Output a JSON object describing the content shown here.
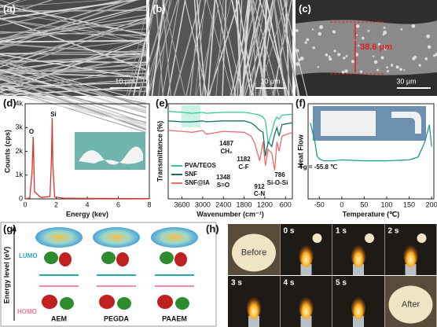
{
  "panels": {
    "labels": [
      "(a)",
      "(b)",
      "(c)",
      "(d)",
      "(e)",
      "(f)",
      "(g)",
      "(h)"
    ],
    "scale_bars": [
      "10 μm",
      "10 μm",
      "30 μm"
    ],
    "thickness": "38.6 μm",
    "g": {
      "y_label": "Energy level (eV)",
      "lumo": "LUMO",
      "homo": "HOMO",
      "molecules": [
        "AEM",
        "PEGDA",
        "PAAEM"
      ]
    },
    "h": {
      "frames": [
        "Before",
        "0 s",
        "1 s",
        "2 s",
        "3 s",
        "4 s",
        "5 s",
        "After"
      ]
    }
  },
  "chart_data": [
    {
      "type": "line",
      "xlabel": "Energy (kev)",
      "ylabel": "Counts (cps)",
      "x": [
        0,
        0.3,
        0.45,
        0.52,
        0.6,
        1.0,
        1.6,
        1.7,
        1.74,
        1.78,
        1.9,
        2.5,
        4,
        6,
        8
      ],
      "xlim": [
        0,
        8
      ],
      "xticks": [
        0,
        2,
        4,
        6,
        8
      ],
      "ylim": [
        0,
        4000
      ],
      "yticks": [
        0,
        {
          "value": 1000,
          "label": "1k"
        },
        {
          "value": 2000,
          "label": "2k"
        },
        {
          "value": 3000,
          "label": "3k"
        },
        {
          "value": 4000,
          "label": "4k"
        }
      ],
      "series": [
        {
          "color": "#e0302a",
          "values": [
            0,
            40,
            1200,
            2600,
            300,
            60,
            100,
            1800,
            3400,
            1500,
            80,
            30,
            20,
            15,
            10
          ]
        }
      ],
      "annotations": [
        "O",
        "Si"
      ]
    },
    {
      "type": "line",
      "xlabel": "Wavenumber (cm⁻¹)",
      "ylabel": "Transmittance (%)",
      "x": [
        4000,
        3600,
        3300,
        3000,
        2900,
        2400,
        1800,
        1600,
        1487,
        1348,
        1250,
        1182,
        1100,
        1000,
        912,
        850,
        786,
        700,
        400
      ],
      "xlim": [
        4000,
        400
      ],
      "xticks": [
        3600,
        3000,
        2400,
        1800,
        1200,
        600
      ],
      "ylim": [
        0,
        100
      ],
      "legend": "lower left",
      "series": [
        {
          "name": "PVA/TEOS",
          "color": "#35c99a",
          "values": [
            92,
            91,
            90,
            91,
            90,
            91,
            91,
            90,
            89,
            88,
            86,
            82,
            58,
            70,
            82,
            86,
            84,
            88,
            89
          ]
        },
        {
          "name": "SNF",
          "color": "#1d6f63",
          "values": [
            82,
            81,
            81,
            82,
            81,
            82,
            82,
            80,
            77,
            72,
            70,
            45,
            60,
            55,
            68,
            75,
            66,
            78,
            80
          ]
        },
        {
          "name": "SNF@IA",
          "color": "#ec6b6b",
          "values": [
            72,
            71,
            70,
            72,
            68,
            71,
            70,
            66,
            58,
            40,
            60,
            35,
            52,
            48,
            30,
            60,
            50,
            66,
            70
          ]
        }
      ],
      "annotations": [
        "1487",
        "CH₂",
        "1348",
        "S=O",
        "1182",
        "C-F",
        "912",
        "C-N",
        "786",
        "Si-O-Si"
      ]
    },
    {
      "type": "line",
      "xlabel": "Temperature (℃)",
      "ylabel": "Heat Flow",
      "x": [
        -70,
        -60,
        -55,
        -50,
        -40,
        -20,
        0,
        50,
        100,
        150,
        170,
        185,
        195,
        200
      ],
      "xlim": [
        -75,
        205
      ],
      "xticks": [
        -50,
        0,
        50,
        100,
        150,
        200
      ],
      "ylim": [
        0,
        100
      ],
      "series": [
        {
          "color": "#1f9c8c",
          "values": [
            80,
            60,
            45,
            42,
            40,
            40,
            41,
            40,
            40,
            41,
            44,
            60,
            78,
            55
          ]
        }
      ],
      "annotations": [
        "Tg = -55.8 ℃"
      ]
    }
  ]
}
